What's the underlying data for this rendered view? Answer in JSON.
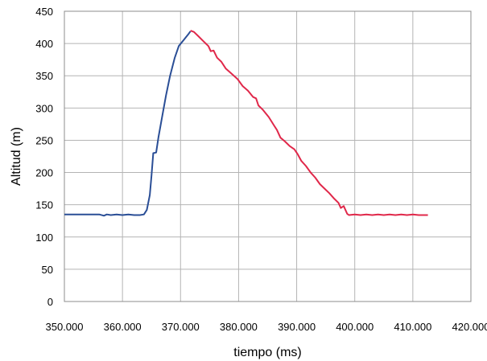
{
  "chart_data": {
    "type": "line",
    "title": "",
    "xlabel": "tiempo (ms)",
    "ylabel": "Altitud (m)",
    "xlim": [
      350000,
      420000
    ],
    "ylim": [
      0,
      450
    ],
    "x_ticks": [
      350000,
      360000,
      370000,
      380000,
      390000,
      400000,
      410000,
      420000
    ],
    "x_tick_labels": [
      "350.000",
      "360.000",
      "370.000",
      "380.000",
      "390.000",
      "400.000",
      "410.000",
      "420.000"
    ],
    "y_ticks": [
      0,
      50,
      100,
      150,
      200,
      250,
      300,
      350,
      400,
      450
    ],
    "y_tick_labels": [
      "0",
      "50",
      "100",
      "150",
      "200",
      "250",
      "300",
      "350",
      "400",
      "450"
    ],
    "grid": true,
    "legend": "none",
    "series": [
      {
        "color": "#2a4e96",
        "points": [
          [
            350000,
            135
          ],
          [
            353000,
            135
          ],
          [
            356000,
            135
          ],
          [
            356800,
            133
          ],
          [
            357300,
            135
          ],
          [
            358000,
            134
          ],
          [
            359000,
            135
          ],
          [
            360000,
            134
          ],
          [
            361000,
            135
          ],
          [
            362000,
            134
          ],
          [
            363000,
            134
          ],
          [
            363700,
            135
          ],
          [
            364200,
            142
          ],
          [
            364700,
            165
          ],
          [
            365000,
            195
          ],
          [
            365300,
            230
          ],
          [
            365800,
            231
          ],
          [
            366200,
            255
          ],
          [
            366800,
            285
          ],
          [
            367500,
            320
          ],
          [
            368200,
            350
          ],
          [
            369000,
            378
          ],
          [
            369700,
            396
          ],
          [
            370500,
            405
          ],
          [
            371300,
            414
          ],
          [
            371700,
            419
          ]
        ]
      },
      {
        "color": "#e0284a",
        "points": [
          [
            371700,
            420
          ],
          [
            372300,
            418
          ],
          [
            373000,
            412
          ],
          [
            374000,
            403
          ],
          [
            374800,
            396
          ],
          [
            375200,
            388
          ],
          [
            375700,
            389
          ],
          [
            376300,
            378
          ],
          [
            377000,
            372
          ],
          [
            377800,
            361
          ],
          [
            378800,
            353
          ],
          [
            379800,
            345
          ],
          [
            380700,
            334
          ],
          [
            381600,
            327
          ],
          [
            382500,
            317
          ],
          [
            383000,
            315
          ],
          [
            383400,
            304
          ],
          [
            384200,
            297
          ],
          [
            385200,
            286
          ],
          [
            386100,
            273
          ],
          [
            386600,
            266
          ],
          [
            387200,
            254
          ],
          [
            388000,
            248
          ],
          [
            388800,
            241
          ],
          [
            389600,
            236
          ],
          [
            390200,
            228
          ],
          [
            390800,
            218
          ],
          [
            391600,
            210
          ],
          [
            392400,
            200
          ],
          [
            393200,
            192
          ],
          [
            394000,
            182
          ],
          [
            394800,
            175
          ],
          [
            395600,
            168
          ],
          [
            396400,
            160
          ],
          [
            397200,
            153
          ],
          [
            397600,
            145
          ],
          [
            398100,
            148
          ],
          [
            398700,
            136
          ],
          [
            399000,
            134
          ],
          [
            400000,
            135
          ],
          [
            401000,
            134
          ],
          [
            402000,
            135
          ],
          [
            403000,
            134
          ],
          [
            404000,
            135
          ],
          [
            405000,
            134
          ],
          [
            406000,
            135
          ],
          [
            407000,
            134
          ],
          [
            408000,
            135
          ],
          [
            409000,
            134
          ],
          [
            410000,
            135
          ],
          [
            411000,
            134
          ],
          [
            412600,
            134
          ]
        ]
      }
    ]
  }
}
